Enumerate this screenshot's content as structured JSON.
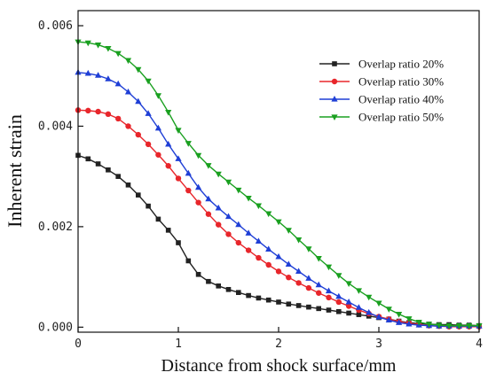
{
  "chart_data": {
    "type": "line",
    "xlabel": "Distance from shock surface/mm",
    "ylabel": "Inherent strain",
    "xlim": [
      0,
      4
    ],
    "ylim": [
      -0.0001,
      0.0063
    ],
    "xticks": [
      0,
      1,
      2,
      3,
      4
    ],
    "xtick_labels": [
      "0",
      "1",
      "2",
      "3",
      "4"
    ],
    "yticks": [
      0.0,
      0.002,
      0.004,
      0.006
    ],
    "ytick_labels": [
      "0.000",
      "0.002",
      "0.004",
      "0.006"
    ],
    "grid": false,
    "legend_position": "top-right",
    "x": [
      0,
      0.1,
      0.2,
      0.3,
      0.4,
      0.5,
      0.6,
      0.7,
      0.8,
      0.9,
      1.0,
      1.1,
      1.2,
      1.3,
      1.4,
      1.5,
      1.6,
      1.7,
      1.8,
      1.9,
      2.0,
      2.1,
      2.2,
      2.3,
      2.4,
      2.5,
      2.6,
      2.7,
      2.8,
      2.9,
      3.0,
      3.1,
      3.2,
      3.3,
      3.4,
      3.5,
      3.6,
      3.7,
      3.8,
      3.9,
      4.0
    ],
    "series": [
      {
        "name": "Overlap ratio 20%",
        "color": "#222222",
        "marker": "square",
        "values": [
          0.00342,
          0.00335,
          0.00325,
          0.00313,
          0.003,
          0.00283,
          0.00263,
          0.00241,
          0.00215,
          0.00193,
          0.00168,
          0.00132,
          0.00105,
          0.00091,
          0.00082,
          0.00075,
          0.00069,
          0.00063,
          0.00058,
          0.00054,
          0.0005,
          0.00046,
          0.00043,
          0.0004,
          0.00037,
          0.00034,
          0.00031,
          0.00028,
          0.00025,
          0.00022,
          0.00019,
          0.00016,
          0.00012,
          9e-05,
          7e-05,
          6e-05,
          5e-05,
          5e-05,
          4e-05,
          4e-05,
          3e-05
        ]
      },
      {
        "name": "Overlap ratio 30%",
        "color": "#e8262b",
        "marker": "circle",
        "values": [
          0.00432,
          0.00431,
          0.00429,
          0.00424,
          0.00415,
          0.004,
          0.00383,
          0.00364,
          0.00343,
          0.00321,
          0.00296,
          0.00272,
          0.00248,
          0.00225,
          0.00204,
          0.00185,
          0.00168,
          0.00153,
          0.00138,
          0.00124,
          0.00111,
          0.00099,
          0.00088,
          0.00078,
          0.00068,
          0.00059,
          0.0005,
          0.00042,
          0.00034,
          0.00027,
          0.00021,
          0.00016,
          0.00011,
          8e-05,
          5e-05,
          3e-05,
          2e-05,
          1e-05,
          1e-05,
          1e-05,
          1e-05
        ]
      },
      {
        "name": "Overlap ratio 40%",
        "color": "#1f3fd6",
        "marker": "triangle-up",
        "values": [
          0.00507,
          0.00505,
          0.00501,
          0.00494,
          0.00484,
          0.00468,
          0.00449,
          0.00425,
          0.00396,
          0.00364,
          0.00335,
          0.00306,
          0.00278,
          0.00255,
          0.00237,
          0.0022,
          0.00204,
          0.00187,
          0.00171,
          0.00155,
          0.0014,
          0.00125,
          0.00111,
          0.00097,
          0.00084,
          0.00072,
          0.00061,
          0.0005,
          0.00039,
          0.00029,
          0.0002,
          0.00014,
          9e-05,
          6e-05,
          4e-05,
          3e-05,
          2e-05,
          2e-05,
          2e-05,
          2e-05,
          2e-05
        ]
      },
      {
        "name": "Overlap ratio 50%",
        "color": "#1aa020",
        "marker": "triangle-down",
        "values": [
          0.00568,
          0.00566,
          0.00562,
          0.00555,
          0.00545,
          0.00531,
          0.00513,
          0.0049,
          0.00461,
          0.00428,
          0.00392,
          0.00366,
          0.00342,
          0.00322,
          0.00305,
          0.00289,
          0.00273,
          0.00257,
          0.00242,
          0.00226,
          0.0021,
          0.00193,
          0.00174,
          0.00156,
          0.00137,
          0.0012,
          0.00103,
          0.00087,
          0.00073,
          0.0006,
          0.00048,
          0.00036,
          0.00026,
          0.00017,
          0.0001,
          6e-05,
          4e-05,
          3e-05,
          3e-05,
          3e-05,
          3e-05
        ]
      }
    ]
  }
}
